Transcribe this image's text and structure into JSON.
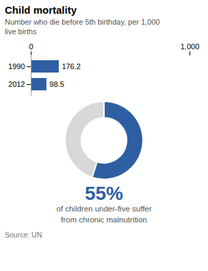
{
  "chart_data": [
    {
      "type": "bar",
      "title": "Child mortality",
      "subtitle": "Number who die before 5th birthday, per 1,000\nlive births",
      "orientation": "horizontal",
      "categories": [
        "1990",
        "2012"
      ],
      "values": [
        176.2,
        98.5
      ],
      "color": "#2E5FA3",
      "xlim": [
        0,
        1000
      ],
      "xticks": [
        0,
        {
          "value": 1000,
          "label": "1,000"
        }
      ],
      "data_labels": true
    },
    {
      "type": "donut",
      "values": [
        55,
        45
      ],
      "colors": [
        "#2E5FA3",
        "#D8D8D8"
      ],
      "value_labels": [
        "55%",
        null
      ],
      "annotation": "of children under-five suffer\nfrom chronic malnutrition",
      "source": "Source: UN"
    }
  ]
}
